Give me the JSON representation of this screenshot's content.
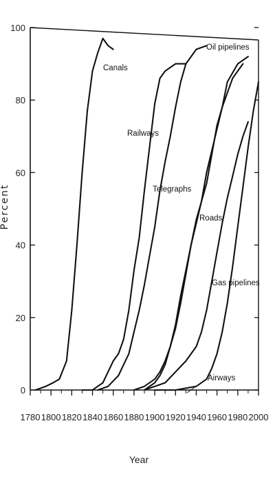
{
  "chart_data": {
    "type": "line",
    "title": "",
    "xlabel": "Year",
    "ylabel": "Percent",
    "xlim": [
      1780,
      2000
    ],
    "ylim": [
      0,
      100
    ],
    "x_ticks": [
      "1780",
      "1800",
      "1820",
      "1840",
      "1860",
      "1880",
      "1900",
      "1920",
      "1940",
      "1960",
      "1980",
      "2000"
    ],
    "y_ticks": [
      "0",
      "20",
      "40",
      "60",
      "80",
      "100"
    ],
    "grid": false,
    "legend": "none",
    "series": [
      {
        "name": "Canals",
        "x": [
          1785,
          1795,
          1802,
          1808,
          1815,
          1820,
          1825,
          1830,
          1835,
          1840,
          1845,
          1850,
          1855,
          1860
        ],
        "y": [
          0,
          1,
          2,
          3,
          8,
          22,
          40,
          60,
          77,
          88,
          93,
          97,
          95,
          94
        ]
      },
      {
        "name": "Railways",
        "x": [
          1830,
          1840,
          1850,
          1855,
          1860,
          1865,
          1870,
          1875,
          1880,
          1885,
          1890,
          1895,
          1900,
          1905,
          1910,
          1915,
          1920,
          1930
        ],
        "y": [
          0,
          0,
          2,
          5,
          8,
          10,
          14,
          22,
          33,
          42,
          55,
          67,
          79,
          86,
          88,
          89,
          90,
          90
        ]
      },
      {
        "name": "Telegraphs",
        "x": [
          1845,
          1855,
          1865,
          1870,
          1875,
          1880,
          1885,
          1890,
          1895,
          1900,
          1905,
          1910,
          1915,
          1920,
          1925,
          1930,
          1940,
          1950
        ],
        "y": [
          0,
          1,
          4,
          7,
          10,
          16,
          22,
          29,
          37,
          45,
          55,
          63,
          70,
          78,
          85,
          90,
          94,
          95
        ]
      },
      {
        "name": "Oil pipelines",
        "x": [
          1880,
          1890,
          1900,
          1905,
          1910,
          1915,
          1920,
          1925,
          1930,
          1935,
          1940,
          1945,
          1950,
          1955,
          1960,
          1965,
          1970,
          1975,
          1980,
          1985
        ],
        "y": [
          0,
          1,
          3,
          5,
          8,
          12,
          17,
          24,
          32,
          40,
          47,
          52,
          57,
          65,
          73,
          78,
          82,
          86,
          88,
          90
        ]
      },
      {
        "name": "Roads",
        "x": [
          1890,
          1900,
          1905,
          1910,
          1915,
          1920,
          1925,
          1930,
          1935,
          1940,
          1945,
          1950,
          1955,
          1960,
          1965,
          1970,
          1980,
          1990
        ],
        "y": [
          0,
          2,
          4,
          7,
          12,
          18,
          26,
          33,
          40,
          46,
          52,
          60,
          66,
          72,
          78,
          85,
          90,
          92
        ]
      },
      {
        "name": "Gas pipelines",
        "x": [
          1890,
          1900,
          1910,
          1920,
          1930,
          1940,
          1945,
          1950,
          1955,
          1960,
          1965,
          1970,
          1975,
          1980,
          1985,
          1990
        ],
        "y": [
          0,
          1,
          2,
          5,
          8,
          12,
          16,
          22,
          30,
          38,
          46,
          53,
          59,
          65,
          70,
          74
        ]
      },
      {
        "name": "Airways",
        "x": [
          1900,
          1920,
          1940,
          1950,
          1955,
          1960,
          1965,
          1970,
          1975,
          1980,
          1985,
          1990,
          1995,
          2000
        ],
        "y": [
          0,
          0,
          1,
          3,
          6,
          10,
          16,
          24,
          34,
          45,
          56,
          67,
          77,
          85
        ]
      }
    ],
    "labels": {
      "canals": "Canals",
      "railways": "Railways",
      "telegraphs": "Telegraphs",
      "oil_pipelines": "Oil pipelines",
      "roads": "Roads",
      "gas_pipelines": "Gas pipelines",
      "airways": "Airways"
    }
  }
}
